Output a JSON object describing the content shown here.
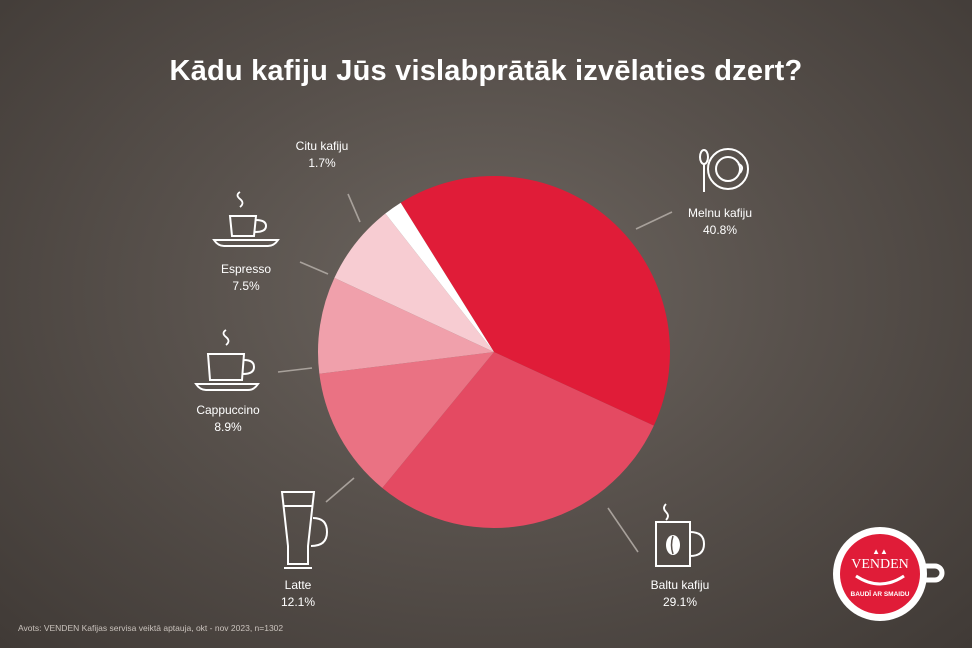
{
  "title": "Kādu kafiju Jūs vislabprātāk izvēlaties dzert?",
  "source": "Avots: VENDEN Kafijas servisa veiktā aptauja, okt - nov 2023, n=1302",
  "logo": {
    "brand": "VENDEN",
    "tagline": "BAUDĪ AR SMAIDU"
  },
  "chart_data": {
    "type": "pie",
    "title": "Kādu kafiju Jūs vislabprātāk izvēlaties dzert?",
    "slices": [
      {
        "label": "Melnu kafiju",
        "value": 40.8,
        "value_label": "40.8%",
        "color": "#e01c38"
      },
      {
        "label": "Baltu kafiju",
        "value": 29.1,
        "value_label": "29.1%",
        "color": "#e44a62"
      },
      {
        "label": "Latte",
        "value": 12.1,
        "value_label": "12.1%",
        "color": "#ea7283"
      },
      {
        "label": "Cappuccino",
        "value": 8.9,
        "value_label": "8.9%",
        "color": "#f0a0ab"
      },
      {
        "label": "Espresso",
        "value": 7.5,
        "value_label": "7.5%",
        "color": "#f7ccd2"
      },
      {
        "label": "Citu kafiju",
        "value": 1.7,
        "value_label": "1.7%",
        "color": "#ffffff"
      }
    ]
  },
  "icons": {
    "melnu": "cup-with-spoon-icon",
    "baltu": "mug-with-bean-icon",
    "latte": "latte-glass-icon",
    "cappuccino": "cappuccino-cup-icon",
    "espresso": "espresso-cup-icon"
  }
}
